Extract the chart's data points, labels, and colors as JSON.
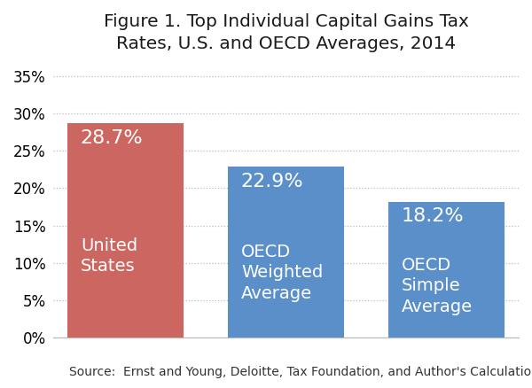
{
  "title": "Figure 1. Top Individual Capital Gains Tax\nRates, U.S. and OECD Averages, 2014",
  "categories": [
    "United\nStates",
    "OECD\nWeighted\nAverage",
    "OECD\nSimple\nAverage"
  ],
  "values": [
    28.7,
    22.9,
    18.2
  ],
  "value_labels": [
    "28.7%",
    "22.9%",
    "18.2%"
  ],
  "bar_colors": [
    "#cc6660",
    "#5b8fc9",
    "#5b8fc9"
  ],
  "ylim": [
    0,
    37
  ],
  "yticks": [
    0,
    5,
    10,
    15,
    20,
    25,
    30,
    35
  ],
  "source_text": "Source:  Ernst and Young, Deloitte, Tax Foundation, and Author's Calculations",
  "background_color": "#ffffff",
  "title_fontsize": 14.5,
  "tick_fontsize": 12,
  "source_fontsize": 10,
  "bar_label_fontsize": 16,
  "bar_name_fontsize": 14,
  "bar_width": 0.72,
  "x_positions": [
    0,
    1,
    2
  ],
  "xlim": [
    -0.45,
    2.45
  ]
}
